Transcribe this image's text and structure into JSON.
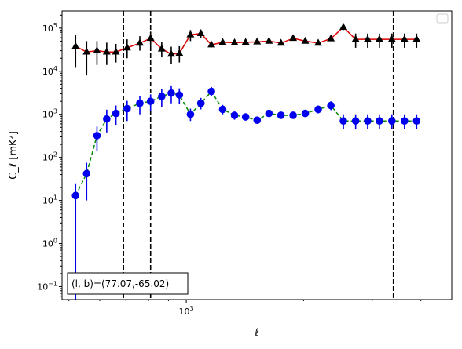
{
  "chart_data": {
    "type": "scatter",
    "xlabel": "ℓ",
    "ylabel": "C_ℓ  [mK²]",
    "xscale": "log",
    "yscale": "log",
    "xlim": [
      480,
      4800
    ],
    "ylim": [
      0.05,
      250000
    ],
    "x_tick_labels": [
      {
        "value": 1000,
        "base": "10",
        "exp": "3"
      }
    ],
    "y_tick_labels": [
      {
        "value": 0.1,
        "base": "10",
        "exp": "−1"
      },
      {
        "value": 1,
        "base": "10",
        "exp": "0"
      },
      {
        "value": 10,
        "base": "10",
        "exp": "1"
      },
      {
        "value": 100,
        "base": "10",
        "exp": "2"
      },
      {
        "value": 1000,
        "base": "10",
        "exp": "3"
      },
      {
        "value": 10000,
        "base": "10",
        "exp": "4"
      },
      {
        "value": 100000,
        "base": "10",
        "exp": "5"
      }
    ],
    "annotation": "(l, b)=(77.07,-65.02)",
    "legend": {
      "location": "top-right",
      "entries": []
    },
    "vlines": [
      690,
      810,
      3400
    ],
    "series": [
      {
        "marker": "triangle",
        "color": "#000000",
        "line_color": "#dd0000",
        "line_style": "solid",
        "x": [
          520,
          555,
          590,
          625,
          660,
          705,
          760,
          810,
          865,
          915,
          960,
          1025,
          1090,
          1160,
          1240,
          1330,
          1420,
          1520,
          1630,
          1750,
          1880,
          2020,
          2180,
          2350,
          2530,
          2720,
          2920,
          3130,
          3370,
          3630,
          3900
        ],
        "y": [
          38000,
          28000,
          30000,
          28000,
          28000,
          35000,
          45000,
          58000,
          33000,
          25000,
          26000,
          70000,
          75000,
          41000,
          47000,
          46000,
          47000,
          48000,
          50000,
          45000,
          58000,
          50000,
          45000,
          57000,
          105000,
          55000,
          55000,
          55000,
          55000,
          55000,
          55000
        ],
        "err_low": [
          26000,
          20000,
          16000,
          14000,
          12000,
          15000,
          15000,
          20000,
          12000,
          10000,
          10000,
          20000,
          15000,
          5000,
          5000,
          5000,
          5000,
          4000,
          4000,
          4000,
          4000,
          4000,
          4000,
          5000,
          15000,
          20000,
          20000,
          20000,
          20000,
          20000,
          20000
        ],
        "err_high": [
          30000,
          22000,
          20000,
          18000,
          15000,
          20000,
          20000,
          25000,
          15000,
          12000,
          12000,
          20000,
          18000,
          6000,
          6000,
          6000,
          6000,
          5000,
          5000,
          5000,
          5000,
          5000,
          5000,
          6000,
          25000,
          20000,
          20000,
          20000,
          20000,
          20000,
          20000
        ]
      },
      {
        "marker": "circle",
        "color": "#0000ee",
        "line_color": "#008800",
        "line_style": "dashed",
        "x": [
          520,
          555,
          590,
          625,
          660,
          705,
          760,
          810,
          865,
          915,
          960,
          1025,
          1090,
          1160,
          1240,
          1330,
          1420,
          1520,
          1630,
          1750,
          1880,
          2020,
          2180,
          2350,
          2530,
          2720,
          2920,
          3130,
          3370,
          3630,
          3900
        ],
        "y": [
          13,
          42,
          320,
          780,
          1050,
          1350,
          1800,
          2000,
          2600,
          3100,
          2800,
          1000,
          1800,
          3400,
          1300,
          950,
          870,
          730,
          1050,
          950,
          950,
          1050,
          1300,
          1600,
          700,
          700,
          700,
          700,
          700,
          700,
          700
        ],
        "err_low": [
          12.95,
          32,
          180,
          400,
          500,
          650,
          800,
          800,
          1100,
          1300,
          1100,
          300,
          500,
          800,
          300,
          200,
          150,
          120,
          180,
          150,
          150,
          180,
          250,
          350,
          250,
          250,
          250,
          250,
          250,
          250,
          250
        ],
        "err_high": [
          12,
          33,
          200,
          500,
          550,
          700,
          900,
          900,
          1200,
          1400,
          1200,
          350,
          600,
          900,
          350,
          200,
          150,
          120,
          200,
          150,
          150,
          200,
          300,
          400,
          300,
          300,
          300,
          300,
          300,
          300,
          300
        ]
      }
    ]
  }
}
